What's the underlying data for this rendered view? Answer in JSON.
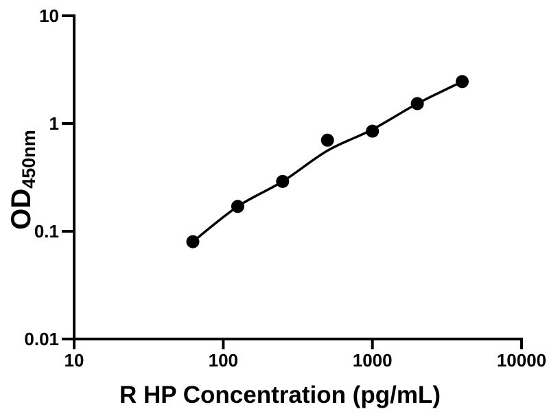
{
  "figure": {
    "background_color": "#ffffff",
    "foreground_color": "#000000"
  },
  "chart_data": {
    "type": "scatter",
    "title": "",
    "xlabel": "R HP Concentration (pg/mL)",
    "ylabel_main": "OD",
    "ylabel_subscript": "450nm",
    "x_scale": "log",
    "y_scale": "log",
    "xlim": [
      10,
      10000
    ],
    "ylim": [
      0.01,
      10
    ],
    "grid": false,
    "legend": "none",
    "x_ticks": [
      {
        "value": 10,
        "label": "10"
      },
      {
        "value": 100,
        "label": "100"
      },
      {
        "value": 1000,
        "label": "1000"
      },
      {
        "value": 10000,
        "label": "10000"
      }
    ],
    "y_ticks": [
      {
        "value": 10,
        "label": "10"
      },
      {
        "value": 1,
        "label": "1"
      },
      {
        "value": 0.1,
        "label": "0.1"
      },
      {
        "value": 0.01,
        "label": "0.01"
      }
    ],
    "series": [
      {
        "name": "standard-points",
        "type": "scatter",
        "marker": "circle",
        "color": "#000000",
        "points": [
          {
            "x": 62.5,
            "y": 0.08
          },
          {
            "x": 125,
            "y": 0.17
          },
          {
            "x": 250,
            "y": 0.29
          },
          {
            "x": 500,
            "y": 0.7
          },
          {
            "x": 1000,
            "y": 0.85
          },
          {
            "x": 2000,
            "y": 1.53
          },
          {
            "x": 4000,
            "y": 2.45
          }
        ]
      },
      {
        "name": "fit-curve",
        "type": "line",
        "color": "#000000",
        "points": [
          {
            "x": 62.5,
            "y": 0.08
          },
          {
            "x": 125,
            "y": 0.17
          },
          {
            "x": 250,
            "y": 0.29
          },
          {
            "x": 500,
            "y": 0.56
          },
          {
            "x": 1000,
            "y": 0.88
          },
          {
            "x": 2000,
            "y": 1.53
          },
          {
            "x": 4000,
            "y": 2.45
          }
        ]
      }
    ],
    "styles": {
      "axis_color": "#000000",
      "axis_width": 4,
      "tick_length_y": 18,
      "tick_length_x": 15,
      "marker_radius": 9.5,
      "line_width": 3.5
    }
  }
}
